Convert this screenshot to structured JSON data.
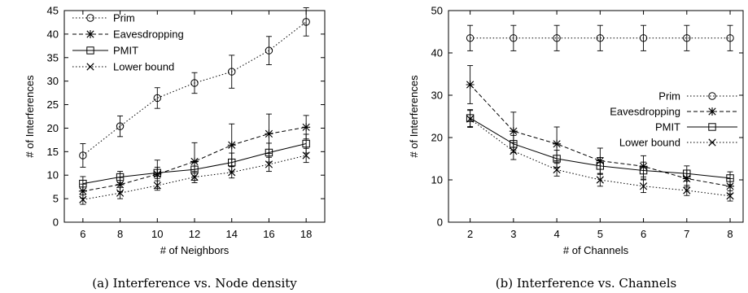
{
  "chart_data": [
    {
      "type": "line",
      "caption": "(a)  Interference vs. Node density",
      "xlabel": "# of Neighbors",
      "ylabel": "# of Interferences",
      "x": [
        6,
        8,
        10,
        12,
        14,
        16,
        18
      ],
      "xlim": [
        5,
        19
      ],
      "ylim": [
        0,
        45
      ],
      "xticks": [
        "6",
        "8",
        "10",
        "12",
        "14",
        "16",
        "18"
      ],
      "yticks": [
        "0",
        "5",
        "10",
        "15",
        "20",
        "25",
        "30",
        "35",
        "40",
        "45"
      ],
      "legend_position": "top-left",
      "series": [
        {
          "name": "Prim",
          "marker": "circle",
          "dash": "dotted",
          "values": [
            14.2,
            20.4,
            26.4,
            29.6,
            32.0,
            36.5,
            42.6
          ],
          "err": [
            2.5,
            2.2,
            2.2,
            2.2,
            3.5,
            3.0,
            3.0
          ]
        },
        {
          "name": "Eavesdropping",
          "marker": "asterisk",
          "dash": "dashed",
          "values": [
            6.6,
            8.0,
            10.2,
            12.9,
            16.4,
            18.8,
            20.2
          ],
          "err": [
            1.5,
            1.5,
            3.0,
            4.0,
            4.5,
            4.2,
            2.5
          ]
        },
        {
          "name": "PMIT",
          "marker": "square",
          "dash": "solid",
          "values": [
            8.2,
            9.6,
            10.5,
            11.2,
            12.7,
            14.8,
            16.7
          ],
          "err": [
            1.5,
            1.2,
            1.2,
            1.5,
            2.0,
            2.0,
            2.0
          ]
        },
        {
          "name": "Lower bound",
          "marker": "x",
          "dash": "dotted",
          "values": [
            4.8,
            6.2,
            7.8,
            9.6,
            10.6,
            12.3,
            14.2
          ],
          "err": [
            1.0,
            1.2,
            1.0,
            1.2,
            1.2,
            1.5,
            1.5
          ]
        }
      ]
    },
    {
      "type": "line",
      "caption": "(b)  Interference vs. Channels",
      "xlabel": "# of Channels",
      "ylabel": "# of Interferences",
      "x": [
        2,
        3,
        4,
        5,
        6,
        7,
        8
      ],
      "xlim": [
        1.5,
        8.3
      ],
      "ylim": [
        0,
        50
      ],
      "xticks": [
        "2",
        "3",
        "4",
        "5",
        "6",
        "7",
        "8"
      ],
      "yticks": [
        "0",
        "10",
        "20",
        "30",
        "40",
        "50"
      ],
      "legend_position": "center-right",
      "series": [
        {
          "name": "Prim",
          "marker": "circle",
          "dash": "dotted",
          "values": [
            43.5,
            43.5,
            43.5,
            43.5,
            43.5,
            43.5,
            43.5
          ],
          "err": [
            3.0,
            3.0,
            3.0,
            3.0,
            3.0,
            3.0,
            3.0
          ]
        },
        {
          "name": "Eavesdropping",
          "marker": "asterisk",
          "dash": "dashed",
          "values": [
            32.5,
            21.5,
            18.5,
            14.5,
            13.2,
            10.3,
            8.5
          ],
          "err": [
            4.5,
            4.5,
            4.0,
            3.0,
            2.5,
            2.0,
            1.8
          ]
        },
        {
          "name": "PMIT",
          "marker": "square",
          "dash": "solid",
          "values": [
            24.6,
            18.5,
            15.0,
            13.3,
            12.2,
            11.5,
            10.4
          ],
          "err": [
            2.0,
            2.0,
            2.0,
            2.0,
            2.0,
            1.8,
            1.5
          ]
        },
        {
          "name": "Lower bound",
          "marker": "x",
          "dash": "dotted",
          "values": [
            24.4,
            16.8,
            12.4,
            10.0,
            8.5,
            7.5,
            6.2
          ],
          "err": [
            2.0,
            2.0,
            1.5,
            1.5,
            1.5,
            1.2,
            1.2
          ]
        }
      ]
    }
  ]
}
